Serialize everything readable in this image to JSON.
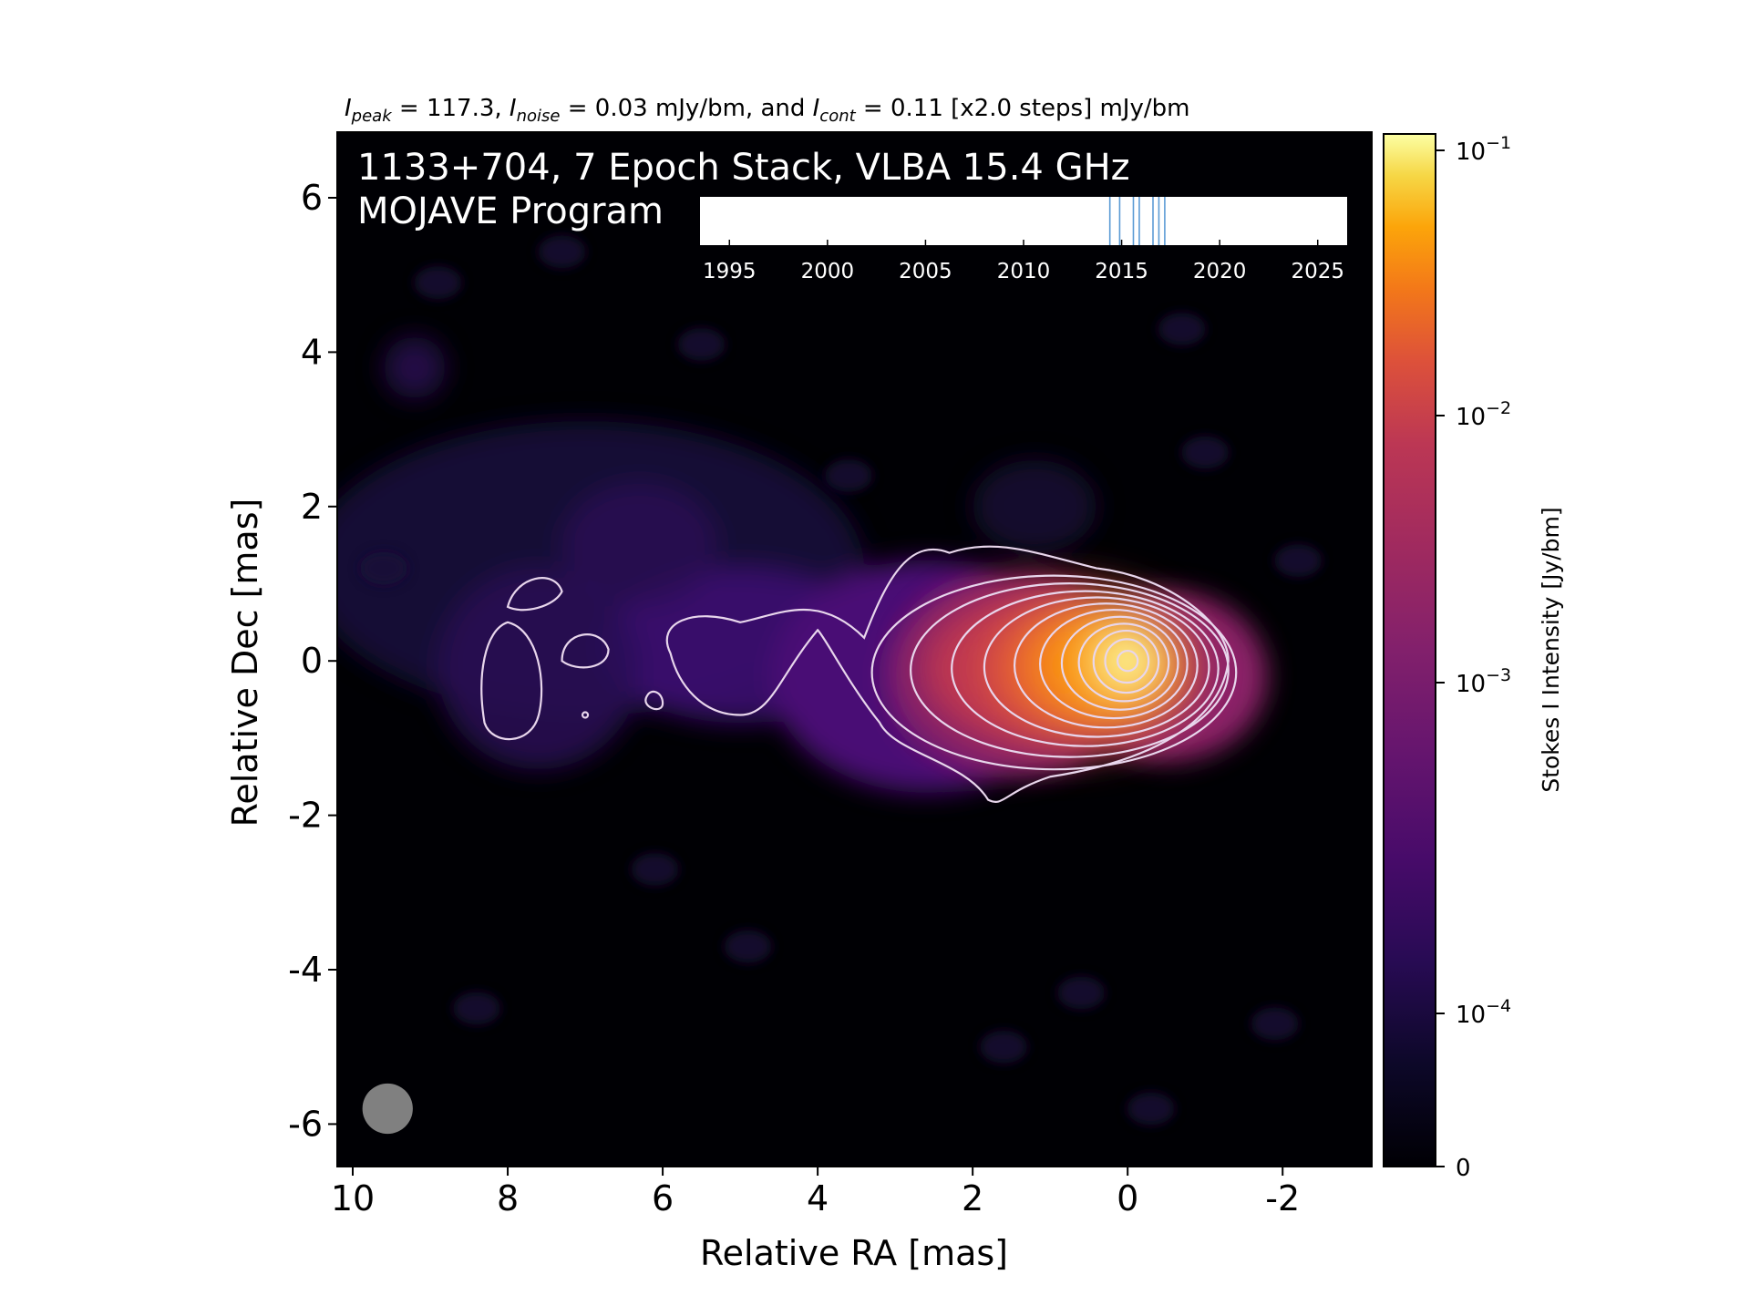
{
  "chart_data": {
    "type": "heatmap",
    "subtitle_parts": {
      "peak_label": "I",
      "peak_sub": "peak",
      "peak_value": " = 117.3, ",
      "noise_label": "I",
      "noise_sub": "noise",
      "noise_value": " = 0.03 mJy/bm, and ",
      "cont_label": "I",
      "cont_sub": "cont",
      "cont_value": " = 0.11 [x2.0 steps] mJy/bm"
    },
    "title_line1": "1133+704, 7 Epoch Stack, VLBA 15.4 GHz",
    "title_line2": "MOJAVE Program",
    "xlabel": "Relative RA [mas]",
    "ylabel": "Relative Dec [mas]",
    "xlim": [
      10.2,
      -3.15
    ],
    "ylim": [
      -6.55,
      6.85
    ],
    "xticks": [
      10,
      8,
      6,
      4,
      2,
      0,
      -2
    ],
    "xtick_labels": [
      "10",
      "8",
      "6",
      "4",
      "2",
      "0",
      "-2"
    ],
    "yticks": [
      6,
      4,
      2,
      0,
      -2,
      -4,
      -6
    ],
    "ytick_labels": [
      "6",
      "4",
      "2",
      "0",
      "-2",
      "-4",
      "-6"
    ],
    "colorbar": {
      "label": "Stokes I Intensity [Jy/bm]",
      "scale": "log",
      "ticks": [
        {
          "value": 0.1,
          "base": "10",
          "exp": "−1"
        },
        {
          "value": 0.01,
          "base": "10",
          "exp": "−2"
        },
        {
          "value": 0.001,
          "base": "10",
          "exp": "−3"
        },
        {
          "value": 0.0001,
          "base": "10",
          "exp": "−4"
        },
        {
          "value": 0,
          "base": "0",
          "exp": ""
        }
      ],
      "colormap": "inferno"
    },
    "core_position": [
      0,
      0
    ],
    "peak_intensity_mJy_per_bm": 117.3,
    "noise_mJy_per_bm": 0.03,
    "contour_base_mJy_per_bm": 0.11,
    "contour_step": 2.0,
    "beam": {
      "ra": 9.55,
      "dec": -5.8,
      "major_mas": 0.65,
      "minor_mas": 0.65
    },
    "epochs_inset": {
      "xlim": [
        1993.5,
        2026.5
      ],
      "ticks": [
        1995,
        2000,
        2005,
        2010,
        2015,
        2020,
        2025
      ],
      "tick_labels": [
        "1995",
        "2000",
        "2005",
        "2010",
        "2015",
        "2020",
        "2025"
      ],
      "epochs": [
        2014.4,
        2014.9,
        2015.6,
        2015.9,
        2016.6,
        2016.9,
        2017.2
      ],
      "line_color": "#5b9bd5"
    },
    "colors": {
      "background": "#000004",
      "contour": "#e8d6ec",
      "beam": "#808080",
      "jet_low": "#3b0f70",
      "core": "#fcffa4"
    }
  }
}
